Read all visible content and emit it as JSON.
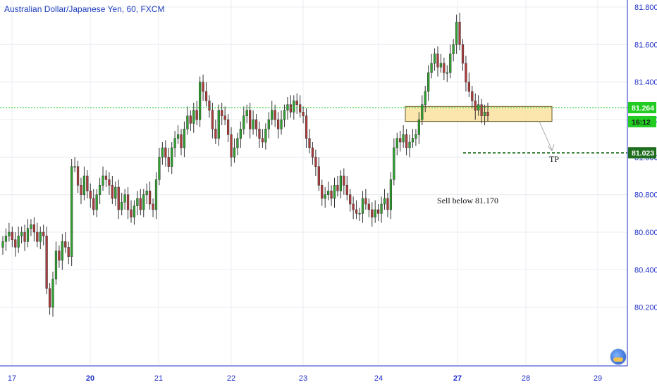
{
  "header": {
    "title": "Australian Dollar/Japanese Yen, 60, FXCM"
  },
  "colors": {
    "up": "#2ea32e",
    "down": "#b03a3a",
    "axis": "#2030c8",
    "grid": "#e9ecf2",
    "current_price_line": "#22cc22",
    "tp_line": "#1f6d1f",
    "zone_fill": "#f9dd91",
    "zone_border": "#6b5a2c"
  },
  "annotations": {
    "sell_note": "Sell below 81.170",
    "tp_label": "TP"
  },
  "price_tags": {
    "current_price": "81.264",
    "countdown": "16:12",
    "tp_price": "81.023"
  },
  "chart_data": {
    "type": "candlestick",
    "title": "Australian Dollar/Japanese Yen, 60, FXCM",
    "x_ticks": [
      "17",
      "20",
      "21",
      "22",
      "23",
      "24",
      "27",
      "28",
      "29"
    ],
    "x_ticks_bold": [
      "20",
      "27"
    ],
    "y_ticks": [
      "81.800",
      "81.600",
      "81.400",
      "81.200",
      "81.000",
      "80.800",
      "80.600",
      "80.400",
      "80.200"
    ],
    "ylim": [
      80.0,
      81.8
    ],
    "grid": true,
    "current_price": 81.264,
    "tp_level": 81.023,
    "entry_note_level": 81.17,
    "zone": {
      "low": 81.19,
      "high": 81.27,
      "start": "Fri 24",
      "end": "Mon 27"
    },
    "closes": [
      80.55,
      80.58,
      80.6,
      80.56,
      80.52,
      80.58,
      80.6,
      80.55,
      80.62,
      80.64,
      80.6,
      80.55,
      80.6,
      80.58,
      80.3,
      80.2,
      80.35,
      80.5,
      80.45,
      80.55,
      80.52,
      80.47,
      80.95,
      80.95,
      80.85,
      80.8,
      80.9,
      80.82,
      80.78,
      80.72,
      80.8,
      80.85,
      80.9,
      80.88,
      80.85,
      80.78,
      80.84,
      80.72,
      80.76,
      80.8,
      80.72,
      80.68,
      80.74,
      80.78,
      80.72,
      80.8,
      80.82,
      80.75,
      80.72,
      80.88,
      81.0,
      81.05,
      81.0,
      80.95,
      81.05,
      81.1,
      81.12,
      81.05,
      81.15,
      81.22,
      81.18,
      81.25,
      81.2,
      81.4,
      81.35,
      81.3,
      81.25,
      81.15,
      81.1,
      81.25,
      81.22,
      81.2,
      81.12,
      81.0,
      81.05,
      81.1,
      81.15,
      81.22,
      81.25,
      81.15,
      81.2,
      81.15,
      81.1,
      81.08,
      81.15,
      81.2,
      81.25,
      81.2,
      81.15,
      81.2,
      81.25,
      81.28,
      81.24,
      81.3,
      81.28,
      81.24,
      81.22,
      81.1,
      81.05,
      81.0,
      80.95,
      80.85,
      80.78,
      80.8,
      80.82,
      80.78,
      80.85,
      80.82,
      80.9,
      80.85,
      80.8,
      80.75,
      80.72,
      80.7,
      80.7,
      80.78,
      80.75,
      80.72,
      80.68,
      80.72,
      80.7,
      80.75,
      80.78,
      80.72,
      80.88,
      81.05,
      81.1,
      81.08,
      81.12,
      81.05,
      81.08,
      81.1,
      81.12,
      81.2,
      81.28,
      81.35,
      81.45,
      81.5,
      81.55,
      81.48,
      81.5,
      81.45,
      81.45,
      81.55,
      81.6,
      81.72,
      81.6,
      81.5,
      81.4,
      81.35,
      81.3,
      81.25,
      81.28,
      81.22,
      81.24,
      81.22
    ],
    "source": "approximate hourly candles read from the chart"
  }
}
